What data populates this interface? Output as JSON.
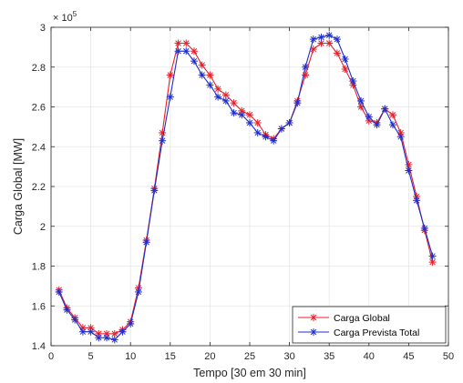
{
  "chart_data": {
    "type": "line",
    "title": "",
    "xlabel": "Tempo [30 em 30 min]",
    "ylabel": "Carga Global [MW]",
    "xlim": [
      0,
      50
    ],
    "ylim": [
      140000,
      300000
    ],
    "x_ticks": [
      "0",
      "5",
      "10",
      "15",
      "20",
      "25",
      "30",
      "35",
      "40",
      "45",
      "50"
    ],
    "y_ticks": [
      "1.4",
      "1.6",
      "1.8",
      "2",
      "2.2",
      "2.4",
      "2.6",
      "2.8",
      "3"
    ],
    "y_exponent": "× 10",
    "y_exponent_power": "5",
    "grid": true,
    "legend_position": "bottom-right",
    "x": [
      1,
      2,
      3,
      4,
      5,
      6,
      7,
      8,
      9,
      10,
      11,
      12,
      13,
      14,
      15,
      16,
      17,
      18,
      19,
      20,
      21,
      22,
      23,
      24,
      25,
      26,
      27,
      28,
      29,
      30,
      31,
      32,
      33,
      34,
      35,
      36,
      37,
      38,
      39,
      40,
      41,
      42,
      43,
      44,
      45,
      46,
      47,
      48
    ],
    "series": [
      {
        "name": "Carga Global",
        "color": "#e8202a",
        "marker": "asterisk",
        "values": [
          168000,
          159000,
          154000,
          149000,
          149000,
          146000,
          146000,
          146000,
          148000,
          152000,
          169000,
          193000,
          219000,
          247000,
          276000,
          292000,
          292000,
          288000,
          281000,
          276000,
          269000,
          266000,
          262000,
          258000,
          256000,
          252000,
          246000,
          244000,
          249000,
          252000,
          263000,
          276000,
          289000,
          292000,
          292000,
          287000,
          279000,
          271000,
          260000,
          253000,
          252000,
          259000,
          256000,
          247000,
          231000,
          215000,
          198000,
          182000
        ]
      },
      {
        "name": "Carga Prevista Total",
        "color": "#1f2ecc",
        "marker": "asterisk",
        "values": [
          167000,
          158000,
          153000,
          147000,
          147000,
          144000,
          144000,
          143000,
          147000,
          151000,
          167000,
          192000,
          218000,
          243000,
          265000,
          288000,
          288000,
          283000,
          276000,
          271000,
          265000,
          263000,
          257000,
          256000,
          252000,
          247000,
          245000,
          243000,
          249000,
          252000,
          262000,
          280000,
          294000,
          295000,
          296000,
          294000,
          284000,
          273000,
          263000,
          255000,
          251000,
          259000,
          251000,
          245000,
          228000,
          213000,
          199000,
          185000
        ]
      }
    ]
  }
}
